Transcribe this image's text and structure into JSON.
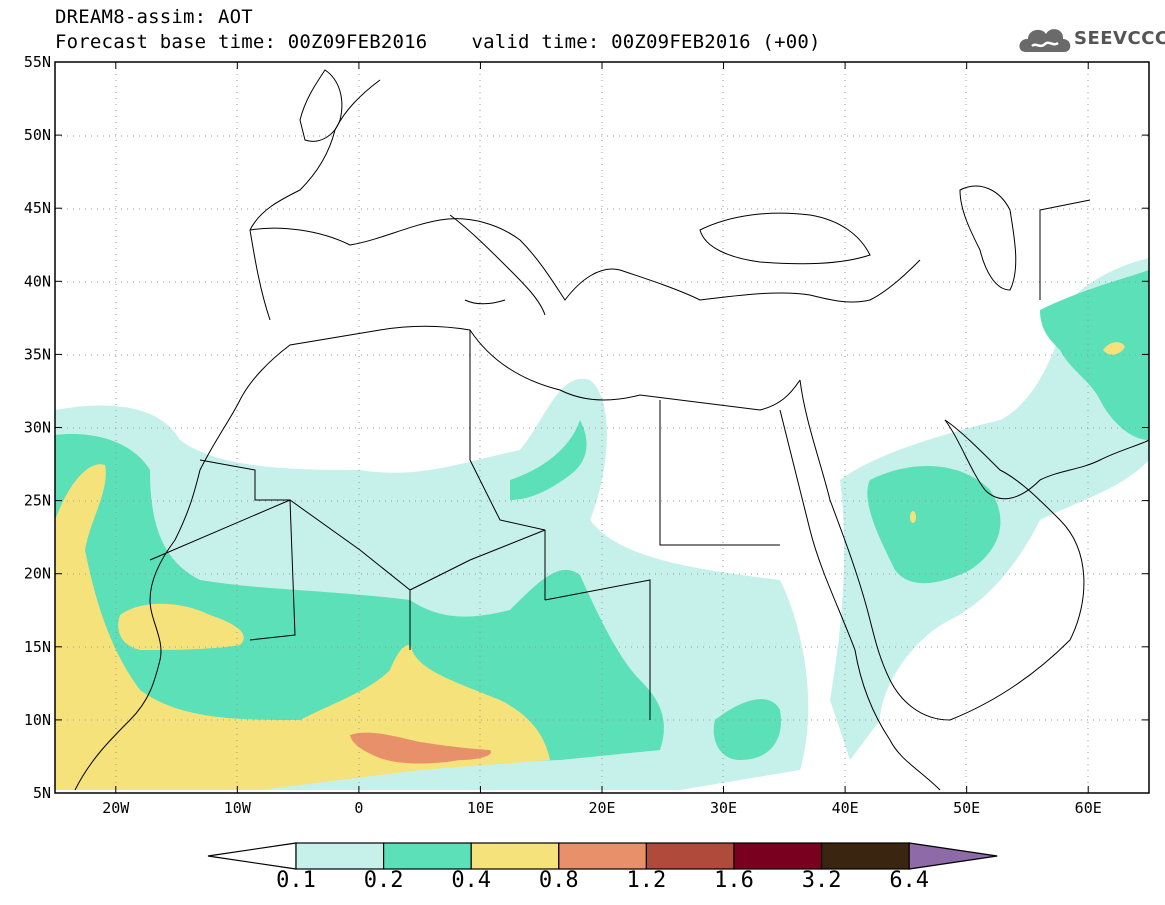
{
  "header": {
    "line1": "DREAM8-assim: AOT",
    "base_time": "Forecast base time: 00Z09FEB2016",
    "valid_time": "valid time: 00Z09FEB2016 (+00)"
  },
  "logo": {
    "text": "SEEVCCC",
    "icon": "cloud-icon"
  },
  "map": {
    "projection": "lat-lon",
    "lon_range": [
      -25,
      65
    ],
    "lat_range": [
      5,
      55
    ],
    "lat_ticks": [
      "55N",
      "50N",
      "45N",
      "40N",
      "35N",
      "30N",
      "25N",
      "20N",
      "15N",
      "10N",
      "5N"
    ],
    "lon_ticks": [
      "20W",
      "10W",
      "0",
      "10E",
      "20E",
      "30E",
      "40E",
      "50E",
      "60E"
    ],
    "grid": true
  },
  "colorbar": {
    "levels": [
      "0.1",
      "0.2",
      "0.4",
      "0.8",
      "1.2",
      "1.6",
      "3.2",
      "6.4"
    ],
    "colors": [
      "#ffffff",
      "#c6f0ea",
      "#5ce0b8",
      "#f6e27a",
      "#e8906a",
      "#b04a3a",
      "#7a0020",
      "#3a2510",
      "#8f6aa8"
    ]
  }
}
